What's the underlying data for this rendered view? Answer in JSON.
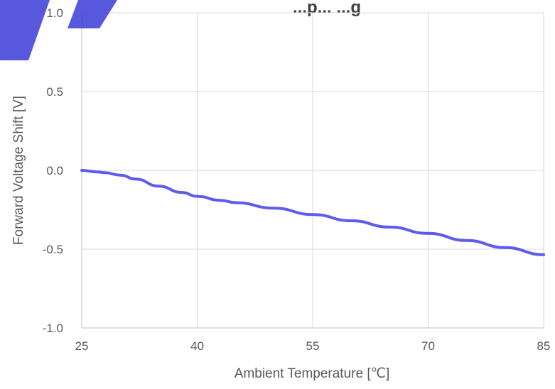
{
  "chart_data": {
    "type": "line",
    "title": "...p... ...g",
    "xlabel": "Ambient Temperature [℃]",
    "ylabel": "Forward Voltage Shift [V]",
    "xlim": [
      25,
      85
    ],
    "ylim": [
      -1.0,
      1.0
    ],
    "xticks": [
      25,
      40,
      55,
      70,
      85
    ],
    "yticks": [
      1.0,
      0.5,
      0.0,
      -0.5,
      -1.0
    ],
    "xtick_labels": [
      "25",
      "40",
      "55",
      "70",
      "85"
    ],
    "ytick_labels": [
      "1.0",
      "0.5",
      "0.0",
      "-0.5",
      "-1.0"
    ],
    "grid": true,
    "series": [
      {
        "color": "#5b5bf0",
        "x": [
          25,
          27,
          28,
          30,
          32,
          35,
          38,
          40,
          43,
          45,
          50,
          55,
          60,
          65,
          70,
          75,
          80,
          85
        ],
        "y": [
          0.0,
          -0.01,
          -0.015,
          -0.03,
          -0.055,
          -0.1,
          -0.14,
          -0.165,
          -0.19,
          -0.205,
          -0.24,
          -0.28,
          -0.32,
          -0.36,
          -0.4,
          -0.445,
          -0.49,
          -0.535
        ]
      }
    ]
  },
  "watermark": {
    "color": "#3b3bd6"
  }
}
